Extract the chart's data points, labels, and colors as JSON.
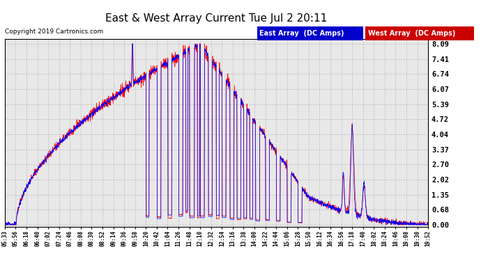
{
  "title": "East & West Array Current Tue Jul 2 20:11",
  "copyright": "Copyright 2019 Cartronics.com",
  "legend_east": "East Array  (DC Amps)",
  "legend_west": "West Array  (DC Amps)",
  "east_color": "#0000ff",
  "west_color": "#ff0000",
  "legend_east_bg": "#0000cc",
  "legend_west_bg": "#cc0000",
  "yticks": [
    0.0,
    0.68,
    1.35,
    2.02,
    2.7,
    3.37,
    4.04,
    4.72,
    5.39,
    6.07,
    6.74,
    7.41,
    8.09
  ],
  "ymin": 0.0,
  "ymax": 8.09,
  "background_color": "#ffffff",
  "plot_bg_color": "#e8e8e8",
  "grid_color": "#bbbbbb",
  "xtick_labels": [
    "05:33",
    "05:56",
    "06:18",
    "06:40",
    "07:02",
    "07:24",
    "07:46",
    "08:08",
    "08:30",
    "08:52",
    "09:14",
    "09:36",
    "09:58",
    "10:20",
    "10:42",
    "11:04",
    "11:26",
    "11:48",
    "12:10",
    "12:32",
    "12:54",
    "13:16",
    "13:38",
    "14:00",
    "14:22",
    "14:44",
    "15:06",
    "15:28",
    "15:50",
    "16:12",
    "16:34",
    "16:56",
    "17:18",
    "17:40",
    "18:02",
    "18:24",
    "18:46",
    "19:08",
    "19:30",
    "19:52"
  ]
}
